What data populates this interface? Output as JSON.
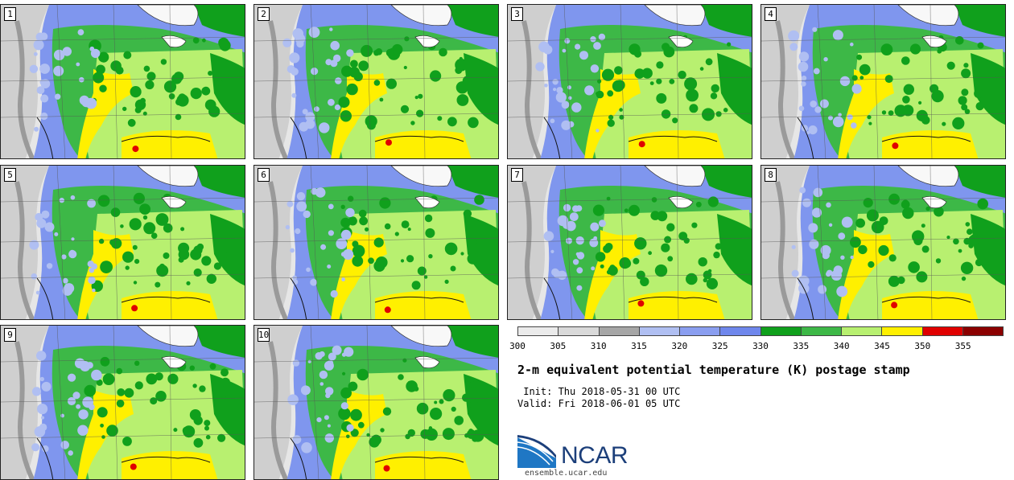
{
  "members": [
    {
      "label": "1"
    },
    {
      "label": "2"
    },
    {
      "label": "3"
    },
    {
      "label": "4"
    },
    {
      "label": "5"
    },
    {
      "label": "6"
    },
    {
      "label": "7"
    },
    {
      "label": "8"
    },
    {
      "label": "9"
    },
    {
      "label": "10"
    }
  ],
  "colorbar": {
    "ticks": [
      "300",
      "305",
      "310",
      "315",
      "320",
      "325",
      "330",
      "335",
      "340",
      "345",
      "350",
      "355"
    ],
    "colors": [
      "#ebebeb",
      "#d9d9d9",
      "#a6a6a6",
      "#b0bff2",
      "#8a9ef0",
      "#6f87ec",
      "#10a01c",
      "#3db847",
      "#b8f070",
      "#fff000",
      "#e00000",
      "#8b0000"
    ]
  },
  "title": "2-m equivalent potential temperature (K) postage stamp",
  "init": " Init: Thu 2018-05-31 00 UTC",
  "valid": "Valid: Fri 2018-06-01 05 UTC",
  "logo": {
    "text": "NCAR",
    "site": "ensemble.ucar.edu"
  }
}
